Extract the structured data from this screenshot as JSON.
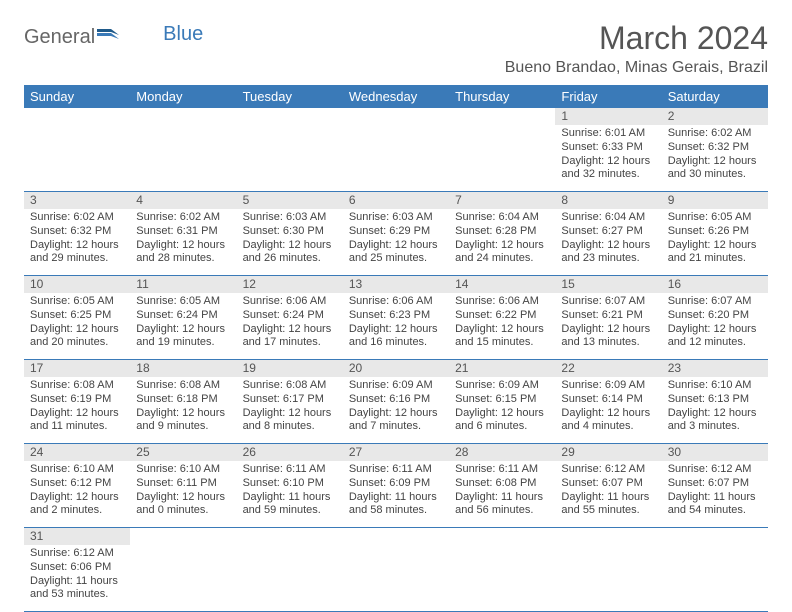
{
  "logo": {
    "general": "General",
    "blue": "Blue"
  },
  "title": "March 2024",
  "location": "Bueno Brandao, Minas Gerais, Brazil",
  "colors": {
    "header_bg": "#3a7ab8",
    "header_text": "#ffffff",
    "daynum_bg": "#e8e8e8",
    "row_divider": "#3a7ab8",
    "text": "#444444"
  },
  "days": [
    "Sunday",
    "Monday",
    "Tuesday",
    "Wednesday",
    "Thursday",
    "Friday",
    "Saturday"
  ],
  "weeks": [
    [
      null,
      null,
      null,
      null,
      null,
      {
        "n": "1",
        "sr": "Sunrise: 6:01 AM",
        "ss": "Sunset: 6:33 PM",
        "dl": "Daylight: 12 hours and 32 minutes."
      },
      {
        "n": "2",
        "sr": "Sunrise: 6:02 AM",
        "ss": "Sunset: 6:32 PM",
        "dl": "Daylight: 12 hours and 30 minutes."
      }
    ],
    [
      {
        "n": "3",
        "sr": "Sunrise: 6:02 AM",
        "ss": "Sunset: 6:32 PM",
        "dl": "Daylight: 12 hours and 29 minutes."
      },
      {
        "n": "4",
        "sr": "Sunrise: 6:02 AM",
        "ss": "Sunset: 6:31 PM",
        "dl": "Daylight: 12 hours and 28 minutes."
      },
      {
        "n": "5",
        "sr": "Sunrise: 6:03 AM",
        "ss": "Sunset: 6:30 PM",
        "dl": "Daylight: 12 hours and 26 minutes."
      },
      {
        "n": "6",
        "sr": "Sunrise: 6:03 AM",
        "ss": "Sunset: 6:29 PM",
        "dl": "Daylight: 12 hours and 25 minutes."
      },
      {
        "n": "7",
        "sr": "Sunrise: 6:04 AM",
        "ss": "Sunset: 6:28 PM",
        "dl": "Daylight: 12 hours and 24 minutes."
      },
      {
        "n": "8",
        "sr": "Sunrise: 6:04 AM",
        "ss": "Sunset: 6:27 PM",
        "dl": "Daylight: 12 hours and 23 minutes."
      },
      {
        "n": "9",
        "sr": "Sunrise: 6:05 AM",
        "ss": "Sunset: 6:26 PM",
        "dl": "Daylight: 12 hours and 21 minutes."
      }
    ],
    [
      {
        "n": "10",
        "sr": "Sunrise: 6:05 AM",
        "ss": "Sunset: 6:25 PM",
        "dl": "Daylight: 12 hours and 20 minutes."
      },
      {
        "n": "11",
        "sr": "Sunrise: 6:05 AM",
        "ss": "Sunset: 6:24 PM",
        "dl": "Daylight: 12 hours and 19 minutes."
      },
      {
        "n": "12",
        "sr": "Sunrise: 6:06 AM",
        "ss": "Sunset: 6:24 PM",
        "dl": "Daylight: 12 hours and 17 minutes."
      },
      {
        "n": "13",
        "sr": "Sunrise: 6:06 AM",
        "ss": "Sunset: 6:23 PM",
        "dl": "Daylight: 12 hours and 16 minutes."
      },
      {
        "n": "14",
        "sr": "Sunrise: 6:06 AM",
        "ss": "Sunset: 6:22 PM",
        "dl": "Daylight: 12 hours and 15 minutes."
      },
      {
        "n": "15",
        "sr": "Sunrise: 6:07 AM",
        "ss": "Sunset: 6:21 PM",
        "dl": "Daylight: 12 hours and 13 minutes."
      },
      {
        "n": "16",
        "sr": "Sunrise: 6:07 AM",
        "ss": "Sunset: 6:20 PM",
        "dl": "Daylight: 12 hours and 12 minutes."
      }
    ],
    [
      {
        "n": "17",
        "sr": "Sunrise: 6:08 AM",
        "ss": "Sunset: 6:19 PM",
        "dl": "Daylight: 12 hours and 11 minutes."
      },
      {
        "n": "18",
        "sr": "Sunrise: 6:08 AM",
        "ss": "Sunset: 6:18 PM",
        "dl": "Daylight: 12 hours and 9 minutes."
      },
      {
        "n": "19",
        "sr": "Sunrise: 6:08 AM",
        "ss": "Sunset: 6:17 PM",
        "dl": "Daylight: 12 hours and 8 minutes."
      },
      {
        "n": "20",
        "sr": "Sunrise: 6:09 AM",
        "ss": "Sunset: 6:16 PM",
        "dl": "Daylight: 12 hours and 7 minutes."
      },
      {
        "n": "21",
        "sr": "Sunrise: 6:09 AM",
        "ss": "Sunset: 6:15 PM",
        "dl": "Daylight: 12 hours and 6 minutes."
      },
      {
        "n": "22",
        "sr": "Sunrise: 6:09 AM",
        "ss": "Sunset: 6:14 PM",
        "dl": "Daylight: 12 hours and 4 minutes."
      },
      {
        "n": "23",
        "sr": "Sunrise: 6:10 AM",
        "ss": "Sunset: 6:13 PM",
        "dl": "Daylight: 12 hours and 3 minutes."
      }
    ],
    [
      {
        "n": "24",
        "sr": "Sunrise: 6:10 AM",
        "ss": "Sunset: 6:12 PM",
        "dl": "Daylight: 12 hours and 2 minutes."
      },
      {
        "n": "25",
        "sr": "Sunrise: 6:10 AM",
        "ss": "Sunset: 6:11 PM",
        "dl": "Daylight: 12 hours and 0 minutes."
      },
      {
        "n": "26",
        "sr": "Sunrise: 6:11 AM",
        "ss": "Sunset: 6:10 PM",
        "dl": "Daylight: 11 hours and 59 minutes."
      },
      {
        "n": "27",
        "sr": "Sunrise: 6:11 AM",
        "ss": "Sunset: 6:09 PM",
        "dl": "Daylight: 11 hours and 58 minutes."
      },
      {
        "n": "28",
        "sr": "Sunrise: 6:11 AM",
        "ss": "Sunset: 6:08 PM",
        "dl": "Daylight: 11 hours and 56 minutes."
      },
      {
        "n": "29",
        "sr": "Sunrise: 6:12 AM",
        "ss": "Sunset: 6:07 PM",
        "dl": "Daylight: 11 hours and 55 minutes."
      },
      {
        "n": "30",
        "sr": "Sunrise: 6:12 AM",
        "ss": "Sunset: 6:07 PM",
        "dl": "Daylight: 11 hours and 54 minutes."
      }
    ],
    [
      {
        "n": "31",
        "sr": "Sunrise: 6:12 AM",
        "ss": "Sunset: 6:06 PM",
        "dl": "Daylight: 11 hours and 53 minutes."
      },
      null,
      null,
      null,
      null,
      null,
      null
    ]
  ]
}
